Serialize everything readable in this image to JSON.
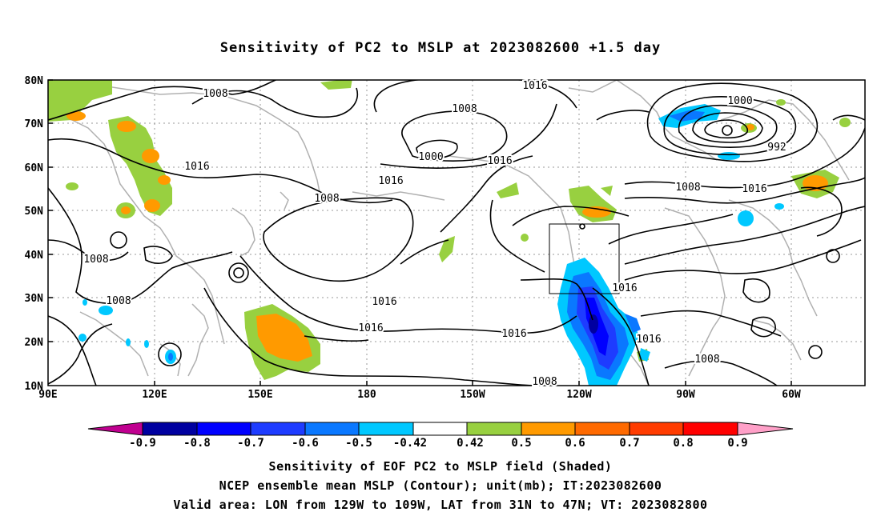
{
  "title": "Sensitivity of PC2 to MSLP at 2023082600 +1.5 day",
  "lat_labels": [
    "80N",
    "70N",
    "60N",
    "50N",
    "40N",
    "30N",
    "20N",
    "10N"
  ],
  "lon_labels": [
    "90E",
    "120E",
    "150E",
    "180",
    "150W",
    "120W",
    "90W",
    "60W"
  ],
  "contour_labels": [
    {
      "text": "1008"
    },
    {
      "text": "1016"
    },
    {
      "text": "1008"
    },
    {
      "text": "1008"
    },
    {
      "text": "1016"
    },
    {
      "text": "1008"
    },
    {
      "text": "1000"
    },
    {
      "text": "1008"
    },
    {
      "text": "1016"
    },
    {
      "text": "1016"
    },
    {
      "text": "1016"
    },
    {
      "text": "1016"
    },
    {
      "text": "1016"
    },
    {
      "text": "1000"
    },
    {
      "text": "992"
    },
    {
      "text": "1008"
    },
    {
      "text": "1016"
    },
    {
      "text": "1016"
    },
    {
      "text": "1016"
    },
    {
      "text": "1008"
    },
    {
      "text": "1008"
    }
  ],
  "colorbar": {
    "labels": [
      "-0.9",
      "-0.8",
      "-0.7",
      "-0.6",
      "-0.5",
      "-0.42",
      "0.42",
      "0.5",
      "0.6",
      "0.7",
      "0.8",
      "0.9"
    ],
    "colors": [
      "#0000a0",
      "#0000ff",
      "#1e3cff",
      "#0a78ff",
      "#00c8ff",
      "#ffffff",
      "#98d040",
      "#ff9a00",
      "#ff6a00",
      "#ff3c00",
      "#ff0000"
    ],
    "left_arrow_color": "#c00090",
    "right_arrow_color": "#ffa0c8"
  },
  "captions": [
    "Sensitivity of EOF PC2 to MSLP field (Shaded)",
    "NCEP ensemble mean MSLP (Contour); unit(mb); IT:2023082600",
    "Valid area: LON from 129W to 109W, LAT from 31N to 47N; VT: 2023082800"
  ]
}
